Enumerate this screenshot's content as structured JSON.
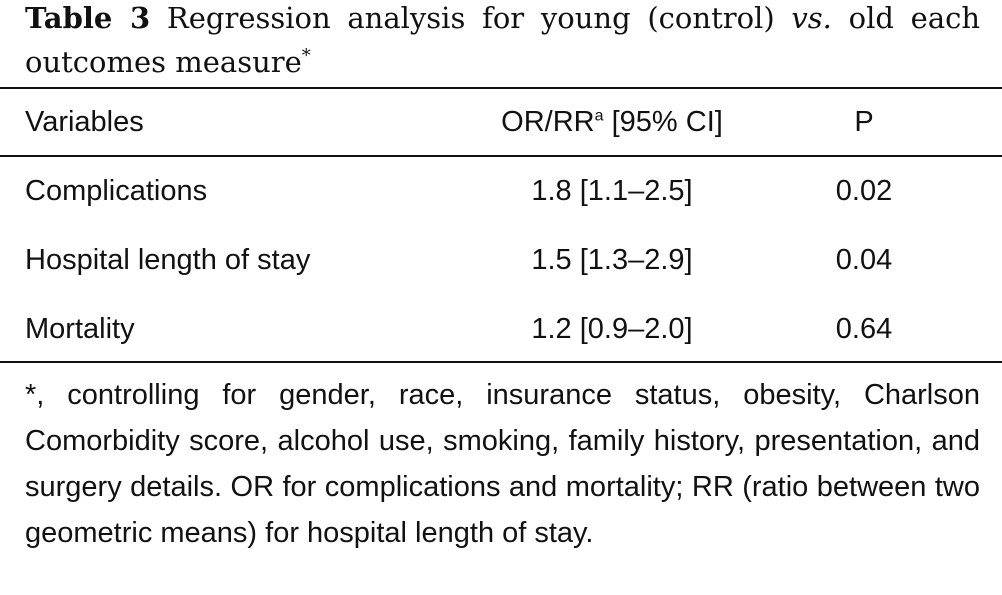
{
  "caption": {
    "label": "Table 3",
    "text_before": "Regression analysis for young (control)",
    "vs": "vs.",
    "text_after": "old each outcomes measure",
    "marker": "*"
  },
  "table": {
    "headers": {
      "variables": "Variables",
      "or_rr": "OR/RR",
      "or_rr_sup": "a",
      "ci": "[95% CI]",
      "p": "P"
    },
    "rows": [
      {
        "variable": "Complications",
        "estimate": "1.8 [1.1–2.5]",
        "p": "0.02"
      },
      {
        "variable": "Hospital length of stay",
        "estimate": "1.5 [1.3–2.9]",
        "p": "0.04"
      },
      {
        "variable": "Mortality",
        "estimate": "1.2 [0.9–2.0]",
        "p": "0.64"
      }
    ]
  },
  "footnote": "*, controlling for gender, race, insurance status, obesity, Charlson Comorbidity score, alcohol use, smoking, family history, presentation, and surgery details. OR for complications and mortality; RR (ratio between two geometric means) for hospital length of stay."
}
